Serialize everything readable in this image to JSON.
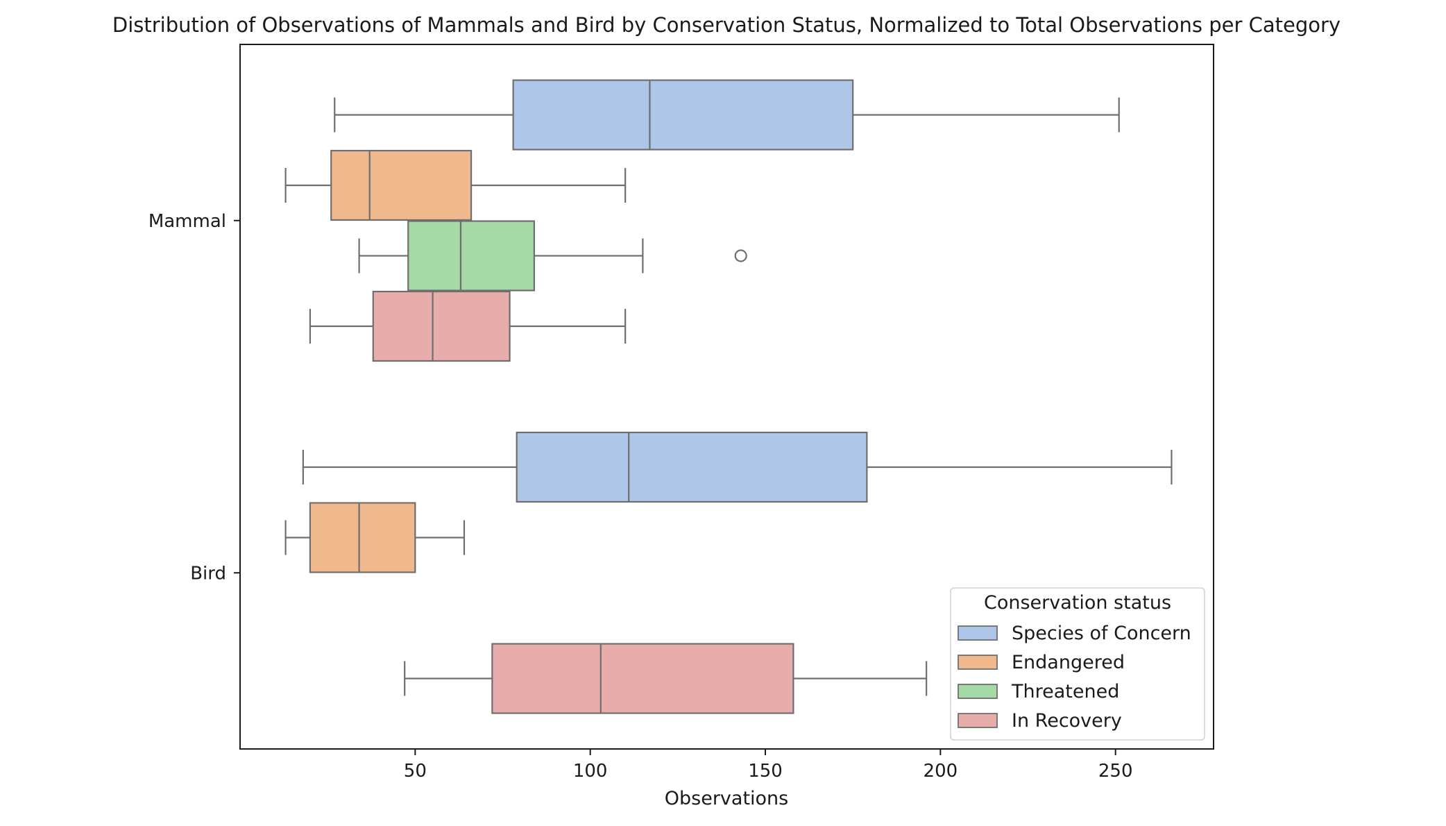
{
  "chart_data": {
    "type": "boxplot",
    "orientation": "horizontal",
    "title": "Distribution of Observations of Mammals and Bird by Conservation Status, Normalized to Total Observations per Category",
    "xlabel": "Observations",
    "ylabel": "",
    "xlim": [
      0,
      278
    ],
    "x_ticks": [
      50,
      100,
      150,
      200,
      250
    ],
    "categories": [
      "Mammal",
      "Bird"
    ],
    "legend": {
      "title": "Conservation status",
      "position": "lower-right"
    },
    "series": [
      {
        "name": "Species of Concern",
        "color": "#aec7e8",
        "boxes": [
          {
            "category": "Mammal",
            "whisker_low": 27,
            "q1": 78,
            "median": 117,
            "q3": 175,
            "whisker_high": 251,
            "outliers": []
          },
          {
            "category": "Bird",
            "whisker_low": 18,
            "q1": 79,
            "median": 111,
            "q3": 179,
            "whisker_high": 266,
            "outliers": []
          }
        ]
      },
      {
        "name": "Endangered",
        "color": "#f0b98d",
        "boxes": [
          {
            "category": "Mammal",
            "whisker_low": 13,
            "q1": 26,
            "median": 37,
            "q3": 66,
            "whisker_high": 110,
            "outliers": []
          },
          {
            "category": "Bird",
            "whisker_low": 13,
            "q1": 20,
            "median": 34,
            "q3": 50,
            "whisker_high": 64,
            "outliers": []
          }
        ]
      },
      {
        "name": "Threatened",
        "color": "#a5d9a5",
        "boxes": [
          {
            "category": "Mammal",
            "whisker_low": 34,
            "q1": 48,
            "median": 63,
            "q3": 84,
            "whisker_high": 115,
            "outliers": [
              143
            ]
          }
        ]
      },
      {
        "name": "In Recovery",
        "color": "#e8adab",
        "boxes": [
          {
            "category": "Mammal",
            "whisker_low": 20,
            "q1": 38,
            "median": 55,
            "q3": 77,
            "whisker_high": 110,
            "outliers": []
          },
          {
            "category": "Bird",
            "whisker_low": 47,
            "q1": 72,
            "median": 103,
            "q3": 158,
            "whisker_high": 196,
            "outliers": []
          }
        ]
      }
    ],
    "colors": {
      "line": "#6e6e6e",
      "axes": "#1a1a1a",
      "background": "#ffffff"
    }
  }
}
